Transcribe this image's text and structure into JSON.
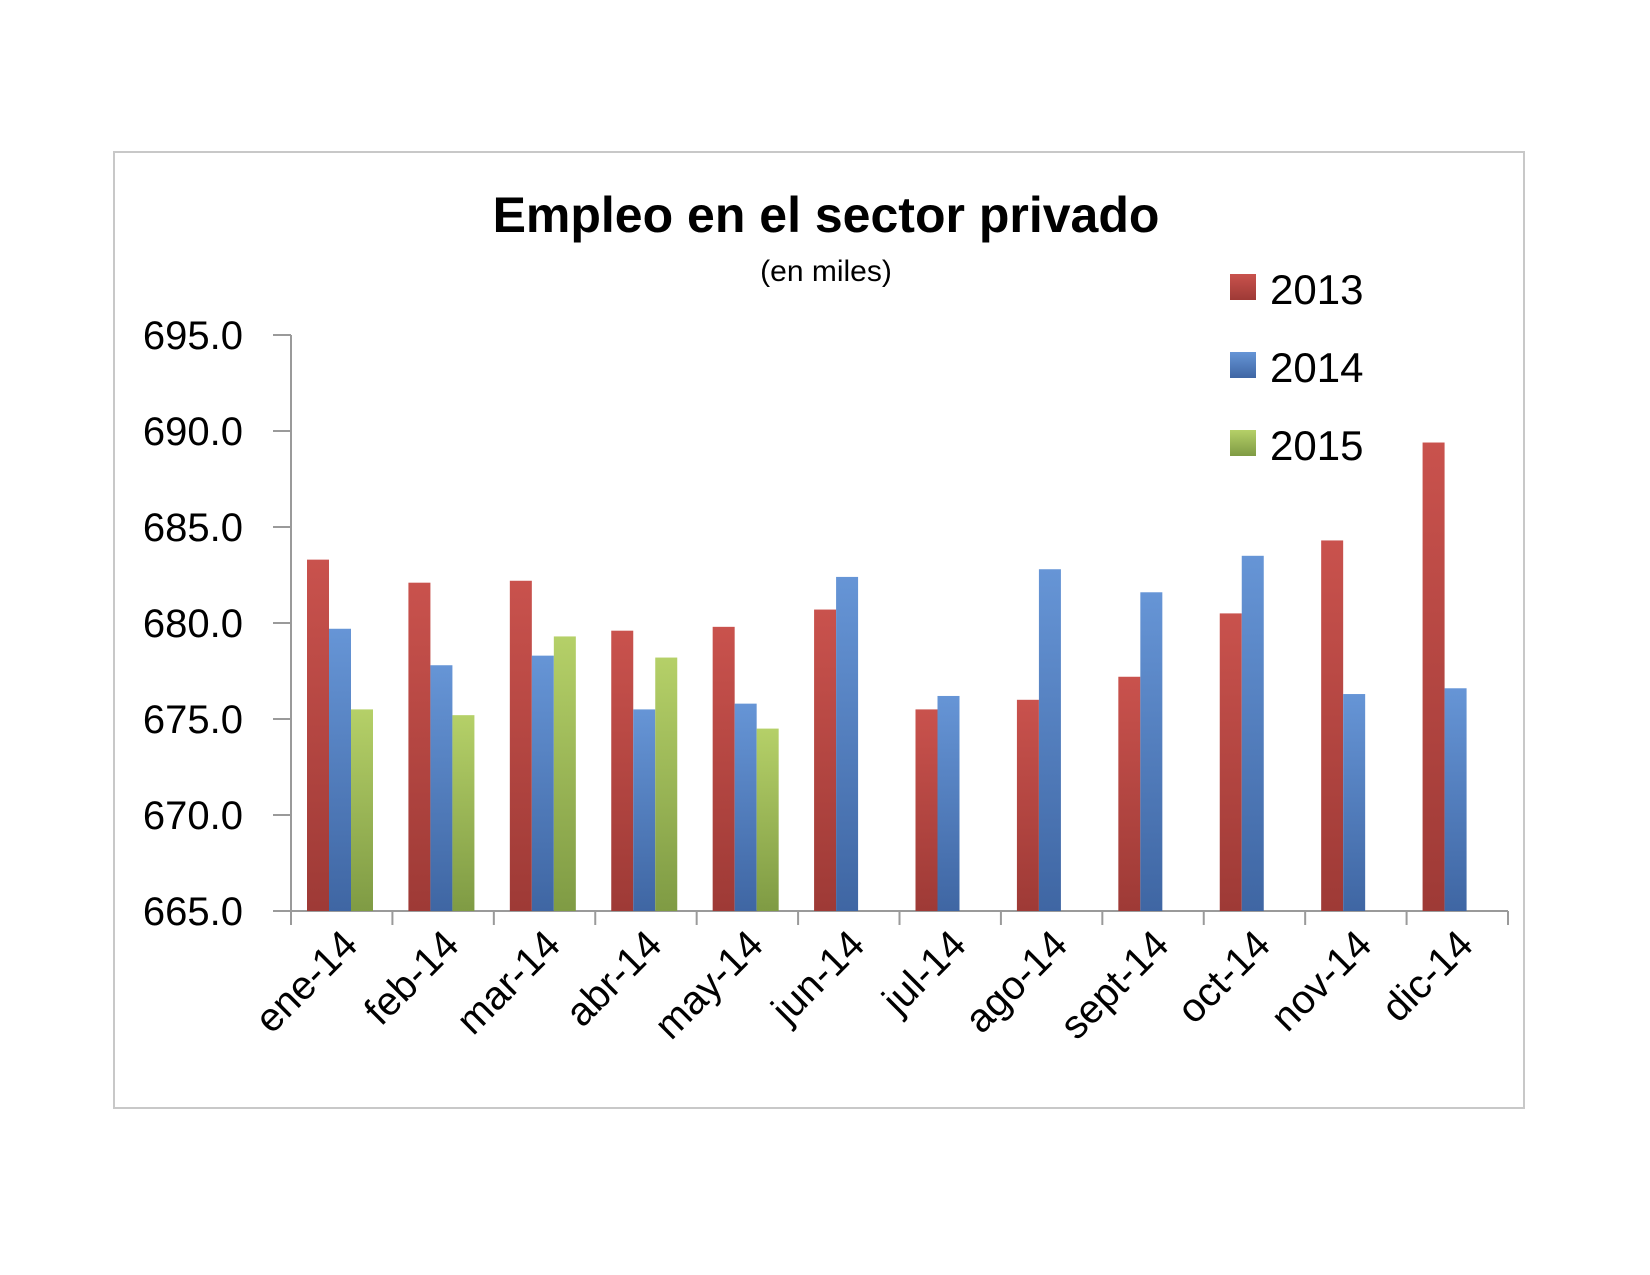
{
  "chart_data": {
    "type": "bar",
    "title": "Empleo en el sector privado",
    "subtitle": "(en miles)",
    "xlabel": "",
    "ylabel": "",
    "ylim": [
      665,
      695
    ],
    "yticks": [
      "695.0",
      "690.0",
      "685.0",
      "680.0",
      "675.0",
      "670.0",
      "665.0"
    ],
    "grid": false,
    "legend_position": "top-right",
    "categories": [
      "ene-14",
      "feb-14",
      "mar-14",
      "abr-14",
      "may-14",
      "jun-14",
      "jul-14",
      "ago-14",
      "sept-14",
      "oct-14",
      "nov-14",
      "dic-14"
    ],
    "series": [
      {
        "name": "2013",
        "color": "#c0504d",
        "values": [
          683.3,
          682.1,
          682.2,
          679.6,
          679.8,
          680.7,
          675.5,
          676.0,
          677.2,
          680.5,
          684.3,
          689.4
        ]
      },
      {
        "name": "2014",
        "color": "#4f81bd",
        "values": [
          679.7,
          677.8,
          678.3,
          675.5,
          675.8,
          682.4,
          676.2,
          682.8,
          681.6,
          683.5,
          676.3,
          676.6
        ]
      },
      {
        "name": "2015",
        "color": "#9bbb59",
        "values": [
          675.5,
          675.2,
          679.3,
          678.2,
          674.5,
          null,
          null,
          null,
          null,
          null,
          null,
          null
        ]
      }
    ]
  }
}
